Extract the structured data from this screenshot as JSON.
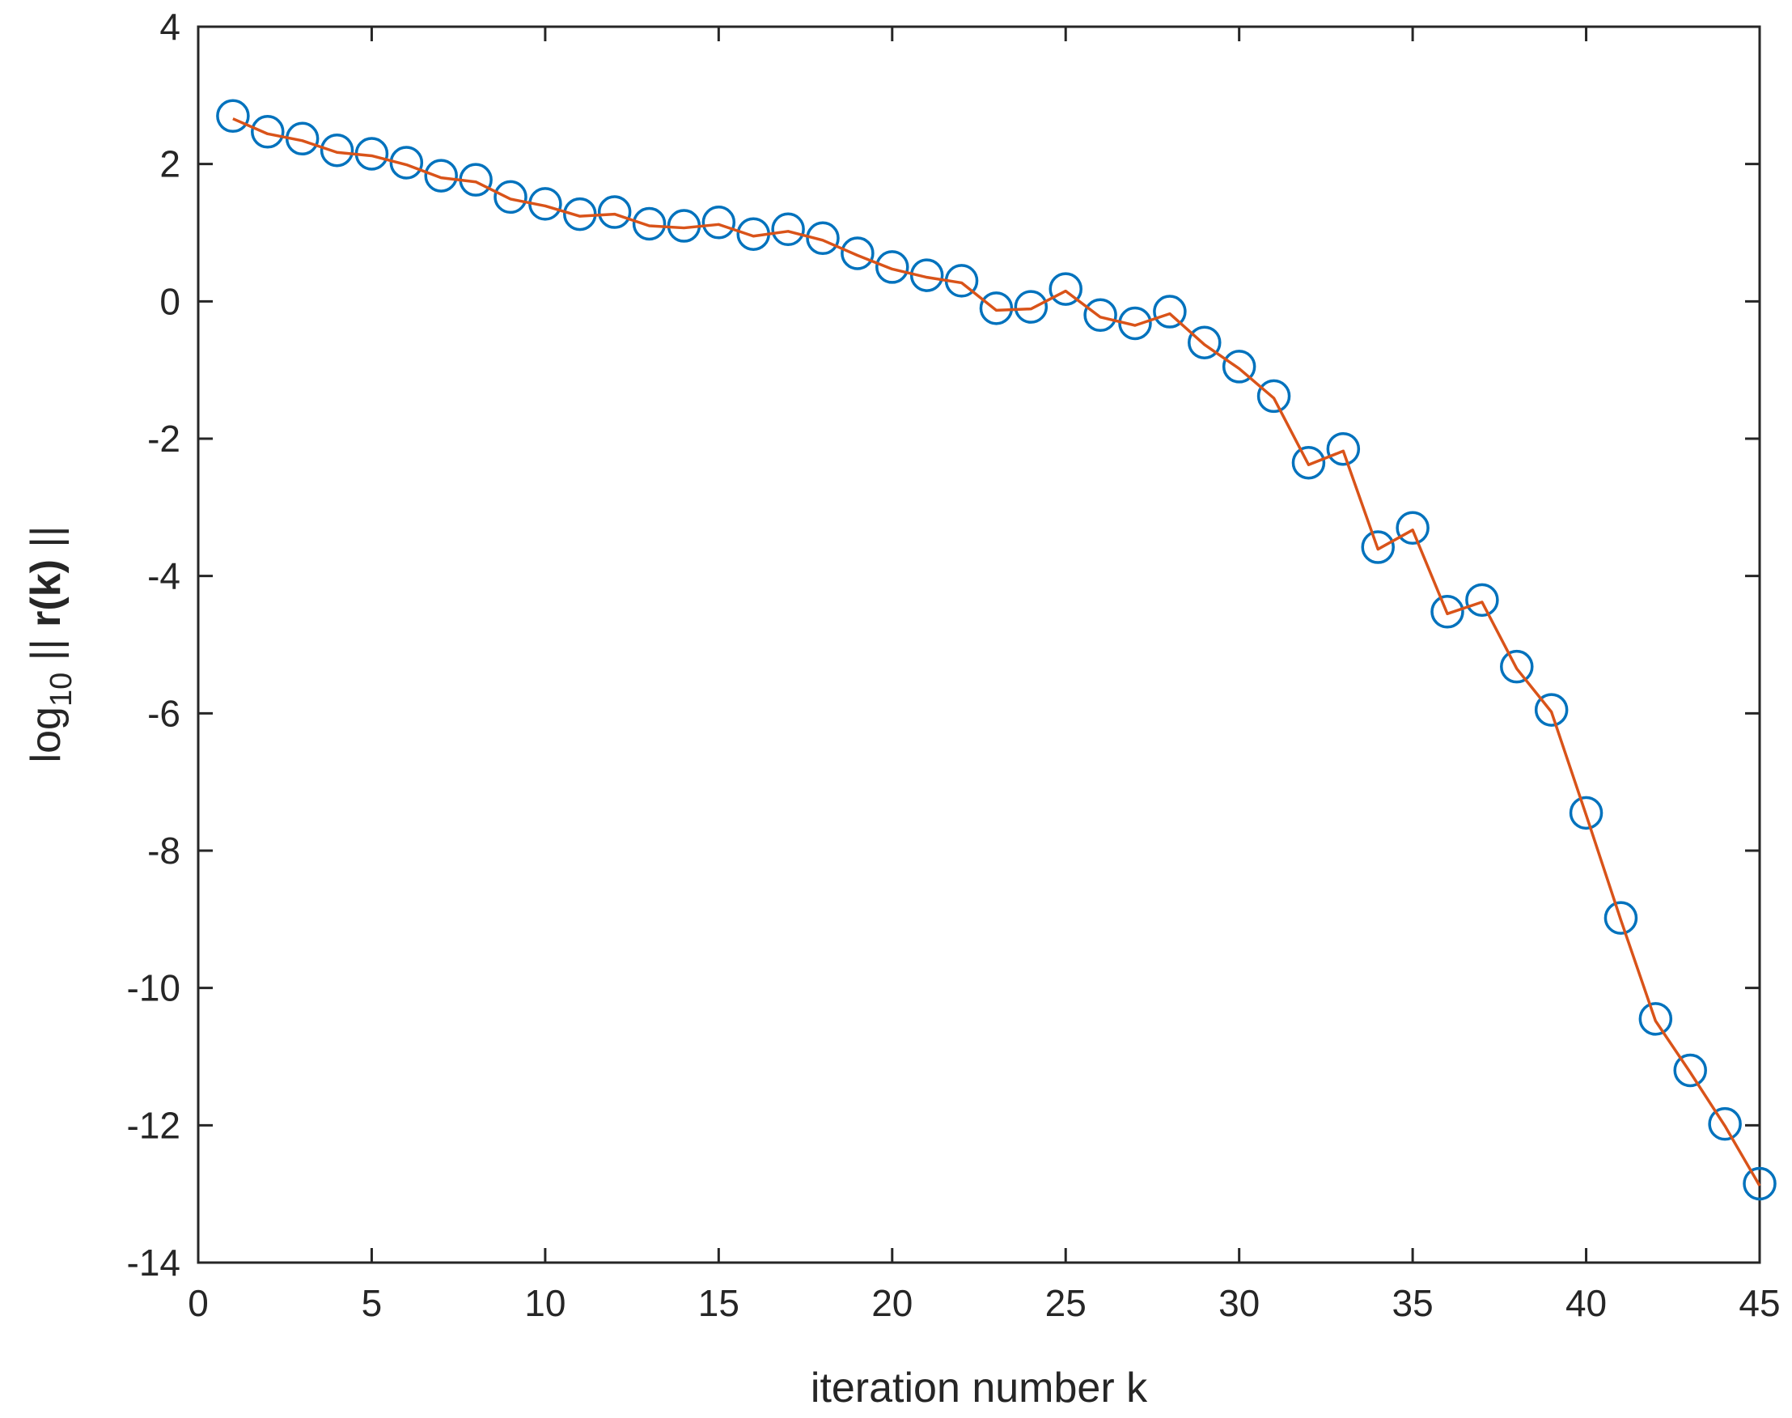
{
  "chart_data": {
    "type": "line",
    "xlabel": "iteration number k",
    "ylabel": {
      "prefix": "log",
      "subscript": "10",
      "norm_open": " || ",
      "argument": "r(k)",
      "norm_close": " ||"
    },
    "xlim": [
      0,
      45
    ],
    "ylim": [
      -14,
      4
    ],
    "xticks": [
      "0",
      "5",
      "10",
      "15",
      "20",
      "25",
      "30",
      "35",
      "40",
      "45"
    ],
    "yticks": [
      "4",
      "2",
      "0",
      "-2",
      "-4",
      "-6",
      "-8",
      "-10",
      "-12",
      "-14"
    ],
    "grid": false,
    "x": [
      1,
      2,
      3,
      4,
      5,
      6,
      7,
      8,
      9,
      10,
      11,
      12,
      13,
      14,
      15,
      16,
      17,
      18,
      19,
      20,
      21,
      22,
      23,
      24,
      25,
      26,
      27,
      28,
      29,
      30,
      31,
      32,
      33,
      34,
      35,
      36,
      37,
      38,
      39,
      40,
      41,
      42,
      43,
      44,
      45
    ],
    "series": [
      {
        "marker": "circle",
        "line": false,
        "color": "#0072BD",
        "values": [
          2.7,
          2.47,
          2.37,
          2.2,
          2.15,
          2.02,
          1.83,
          1.77,
          1.52,
          1.42,
          1.27,
          1.3,
          1.13,
          1.1,
          1.15,
          0.98,
          1.05,
          0.92,
          0.7,
          0.5,
          0.38,
          0.3,
          -0.1,
          -0.08,
          0.18,
          -0.2,
          -0.32,
          -0.15,
          -0.6,
          -0.95,
          -1.38,
          -2.35,
          -2.15,
          -3.58,
          -3.3,
          -4.52,
          -4.35,
          -5.32,
          -5.95,
          -7.45,
          -8.98,
          -10.45,
          -11.2,
          -11.98,
          -12.85
        ]
      },
      {
        "marker": "none",
        "line": true,
        "color": "#D95319",
        "values": [
          2.66,
          2.44,
          2.34,
          2.17,
          2.12,
          1.99,
          1.8,
          1.74,
          1.49,
          1.39,
          1.24,
          1.27,
          1.1,
          1.07,
          1.12,
          0.95,
          1.02,
          0.89,
          0.67,
          0.47,
          0.35,
          0.27,
          -0.13,
          -0.11,
          0.15,
          -0.23,
          -0.35,
          -0.18,
          -0.63,
          -0.98,
          -1.41,
          -2.38,
          -2.18,
          -3.61,
          -3.33,
          -4.55,
          -4.38,
          -5.35,
          -5.98,
          -7.48,
          -9.01,
          -10.48,
          -11.23,
          -12.01,
          -12.88
        ]
      }
    ]
  }
}
